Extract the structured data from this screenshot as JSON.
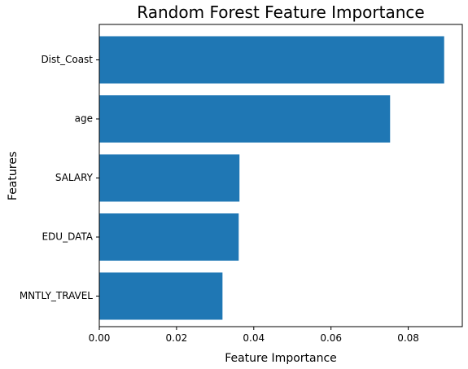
{
  "chart_data": {
    "type": "bar",
    "orientation": "horizontal",
    "title": "Random Forest Feature Importance",
    "xlabel": "Feature Importance",
    "ylabel": "Features",
    "categories": [
      "Dist_Coast",
      "age",
      "SALARY",
      "EDU_DATA",
      "MNTLY_TRAVEL"
    ],
    "values": [
      0.0893,
      0.0753,
      0.0363,
      0.0361,
      0.0319
    ],
    "xlim": [
      0,
      0.094
    ],
    "xticks": [
      0.0,
      0.02,
      0.04,
      0.06,
      0.08
    ],
    "xtick_labels": [
      "0.00",
      "0.02",
      "0.04",
      "0.06",
      "0.08"
    ],
    "bar_color": "#1f77b4",
    "grid": false,
    "legend": "none"
  }
}
